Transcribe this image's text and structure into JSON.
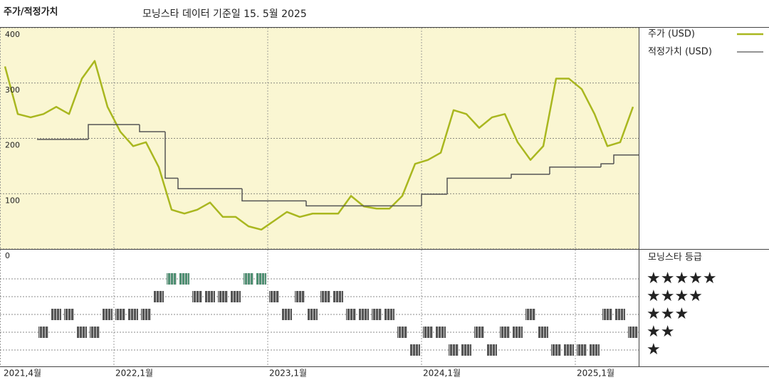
{
  "chart_data": {
    "type": "line",
    "title": "주가/적정가치",
    "subtitle": "모닝스타 데이터 기준일 15. 5월 2025",
    "x": [
      "2021-04",
      "2021-05",
      "2021-06",
      "2021-07",
      "2021-08",
      "2021-09",
      "2021-10",
      "2021-11",
      "2021-12",
      "2022-01",
      "2022-02",
      "2022-03",
      "2022-04",
      "2022-05",
      "2022-06",
      "2022-07",
      "2022-08",
      "2022-09",
      "2022-10",
      "2022-11",
      "2022-12",
      "2023-01",
      "2023-02",
      "2023-03",
      "2023-04",
      "2023-05",
      "2023-06",
      "2023-07",
      "2023-08",
      "2023-09",
      "2023-10",
      "2023-11",
      "2023-12",
      "2024-01",
      "2024-02",
      "2024-03",
      "2024-04",
      "2024-05",
      "2024-06",
      "2024-07",
      "2024-08",
      "2024-09",
      "2024-10",
      "2024-11",
      "2024-12",
      "2025-01",
      "2025-02",
      "2025-03",
      "2025-04",
      "2025-05"
    ],
    "xticks": [
      {
        "value": "2021-04",
        "label": "2021,4월"
      },
      {
        "value": "2022-01",
        "label": "2022,1월"
      },
      {
        "value": "2023-01",
        "label": "2023,1월"
      },
      {
        "value": "2024-01",
        "label": "2024,1월"
      },
      {
        "value": "2025-01",
        "label": "2025,1월"
      }
    ],
    "ylim": [
      0,
      400
    ],
    "yticks": [
      0,
      100,
      200,
      300,
      400
    ],
    "grid": true,
    "legend": "right",
    "series": [
      {
        "name": "주가 (USD)",
        "color": "#a9b71f",
        "values": [
          330,
          244,
          238,
          244,
          257,
          244,
          308,
          340,
          257,
          212,
          186,
          193,
          148,
          71,
          64,
          71,
          84,
          58,
          58,
          41,
          35,
          51,
          67,
          58,
          64,
          64,
          64,
          96,
          77,
          73,
          73,
          96,
          154,
          161,
          174,
          251,
          244,
          219,
          238,
          244,
          193,
          161,
          186,
          308,
          308,
          289,
          244,
          186,
          193,
          257
        ]
      },
      {
        "name": "적정가치 (USD)",
        "color": "#555555",
        "step": true,
        "values": [
          null,
          null,
          null,
          198,
          198,
          198,
          198,
          225,
          225,
          225,
          225,
          212,
          212,
          128,
          109,
          109,
          109,
          109,
          109,
          87,
          87,
          87,
          87,
          87,
          78,
          78,
          78,
          78,
          78,
          78,
          78,
          78,
          78,
          99,
          99,
          128,
          128,
          128,
          128,
          128,
          135,
          135,
          135,
          148,
          148,
          148,
          148,
          154,
          170,
          170
        ]
      }
    ],
    "ratings": {
      "title": "모닝스타 등급",
      "levels": [
        "★★★★★",
        "★★★★",
        "★★★",
        "★★",
        "★"
      ],
      "color": "#555555",
      "top_color": "#4e8f72",
      "values": [
        null,
        null,
        null,
        2,
        3,
        3,
        2,
        2,
        3,
        3,
        3,
        3,
        4,
        5,
        5,
        4,
        4,
        4,
        4,
        5,
        5,
        4,
        3,
        4,
        3,
        4,
        4,
        3,
        3,
        3,
        3,
        2,
        1,
        2,
        2,
        1,
        1,
        2,
        1,
        2,
        2,
        3,
        2,
        1,
        1,
        1,
        1,
        3,
        3,
        2
      ]
    }
  }
}
